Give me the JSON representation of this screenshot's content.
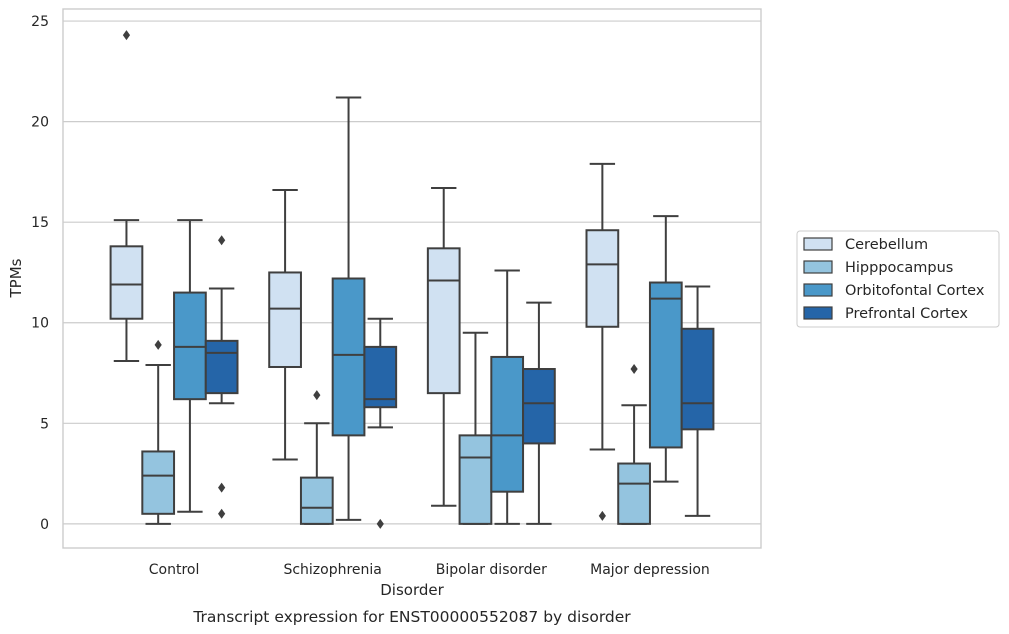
{
  "caption": "Transcript expression for ENST00000552087 by disorder",
  "chart_data": {
    "type": "box",
    "xlabel": "Disorder",
    "ylabel": "TPMs",
    "ylim": [
      -1.2,
      25.6
    ],
    "yticks": [
      0,
      5,
      10,
      15,
      20,
      25
    ],
    "grid": "horizontal",
    "legend_position": "right",
    "categories": [
      "Control",
      "Schizophrenia",
      "Bipolar disorder",
      "Major depression"
    ],
    "series": [
      {
        "name": "Cerebellum",
        "color": "#d0e1f2",
        "boxes": [
          {
            "whisker_low": 8.1,
            "q1": 10.2,
            "median": 11.9,
            "q3": 13.8,
            "whisker_high": 15.1,
            "outliers": [
              24.3
            ]
          },
          {
            "whisker_low": 3.2,
            "q1": 7.8,
            "median": 10.7,
            "q3": 12.5,
            "whisker_high": 16.6,
            "outliers": []
          },
          {
            "whisker_low": 0.9,
            "q1": 6.5,
            "median": 12.1,
            "q3": 13.7,
            "whisker_high": 16.7,
            "outliers": []
          },
          {
            "whisker_low": 3.7,
            "q1": 9.8,
            "median": 12.9,
            "q3": 14.6,
            "whisker_high": 17.9,
            "outliers": [
              0.4
            ]
          }
        ]
      },
      {
        "name": "Hipppocampus",
        "color": "#94c4df",
        "boxes": [
          {
            "whisker_low": 0.0,
            "q1": 0.5,
            "median": 2.4,
            "q3": 3.6,
            "whisker_high": 7.9,
            "outliers": [
              8.9
            ]
          },
          {
            "whisker_low": 0.0,
            "q1": 0.0,
            "median": 0.8,
            "q3": 2.3,
            "whisker_high": 5.0,
            "outliers": [
              6.4
            ]
          },
          {
            "whisker_low": 0.0,
            "q1": 0.0,
            "median": 3.3,
            "q3": 4.4,
            "whisker_high": 9.5,
            "outliers": []
          },
          {
            "whisker_low": 0.0,
            "q1": 0.0,
            "median": 2.0,
            "q3": 3.0,
            "whisker_high": 5.9,
            "outliers": [
              7.7
            ]
          }
        ]
      },
      {
        "name": "Orbitofontal Cortex",
        "color": "#4a98c9",
        "boxes": [
          {
            "whisker_low": 0.6,
            "q1": 6.2,
            "median": 8.8,
            "q3": 11.5,
            "whisker_high": 15.1,
            "outliers": []
          },
          {
            "whisker_low": 0.2,
            "q1": 4.4,
            "median": 8.4,
            "q3": 12.2,
            "whisker_high": 21.2,
            "outliers": []
          },
          {
            "whisker_low": 0.0,
            "q1": 1.6,
            "median": 4.4,
            "q3": 8.3,
            "whisker_high": 12.6,
            "outliers": []
          },
          {
            "whisker_low": 2.1,
            "q1": 3.8,
            "median": 11.2,
            "q3": 12.0,
            "whisker_high": 15.3,
            "outliers": []
          }
        ]
      },
      {
        "name": "Prefrontal Cortex",
        "color": "#2565a8",
        "boxes": [
          {
            "whisker_low": 6.0,
            "q1": 6.5,
            "median": 8.5,
            "q3": 9.1,
            "whisker_high": 11.7,
            "outliers": [
              14.1,
              1.8,
              0.5
            ]
          },
          {
            "whisker_low": 4.8,
            "q1": 5.8,
            "median": 6.2,
            "q3": 8.8,
            "whisker_high": 10.2,
            "outliers": [
              0.0
            ]
          },
          {
            "whisker_low": 0.0,
            "q1": 4.0,
            "median": 6.0,
            "q3": 7.7,
            "whisker_high": 11.0,
            "outliers": []
          },
          {
            "whisker_low": 0.4,
            "q1": 4.7,
            "median": 6.0,
            "q3": 9.7,
            "whisker_high": 11.8,
            "outliers": []
          }
        ]
      }
    ]
  }
}
